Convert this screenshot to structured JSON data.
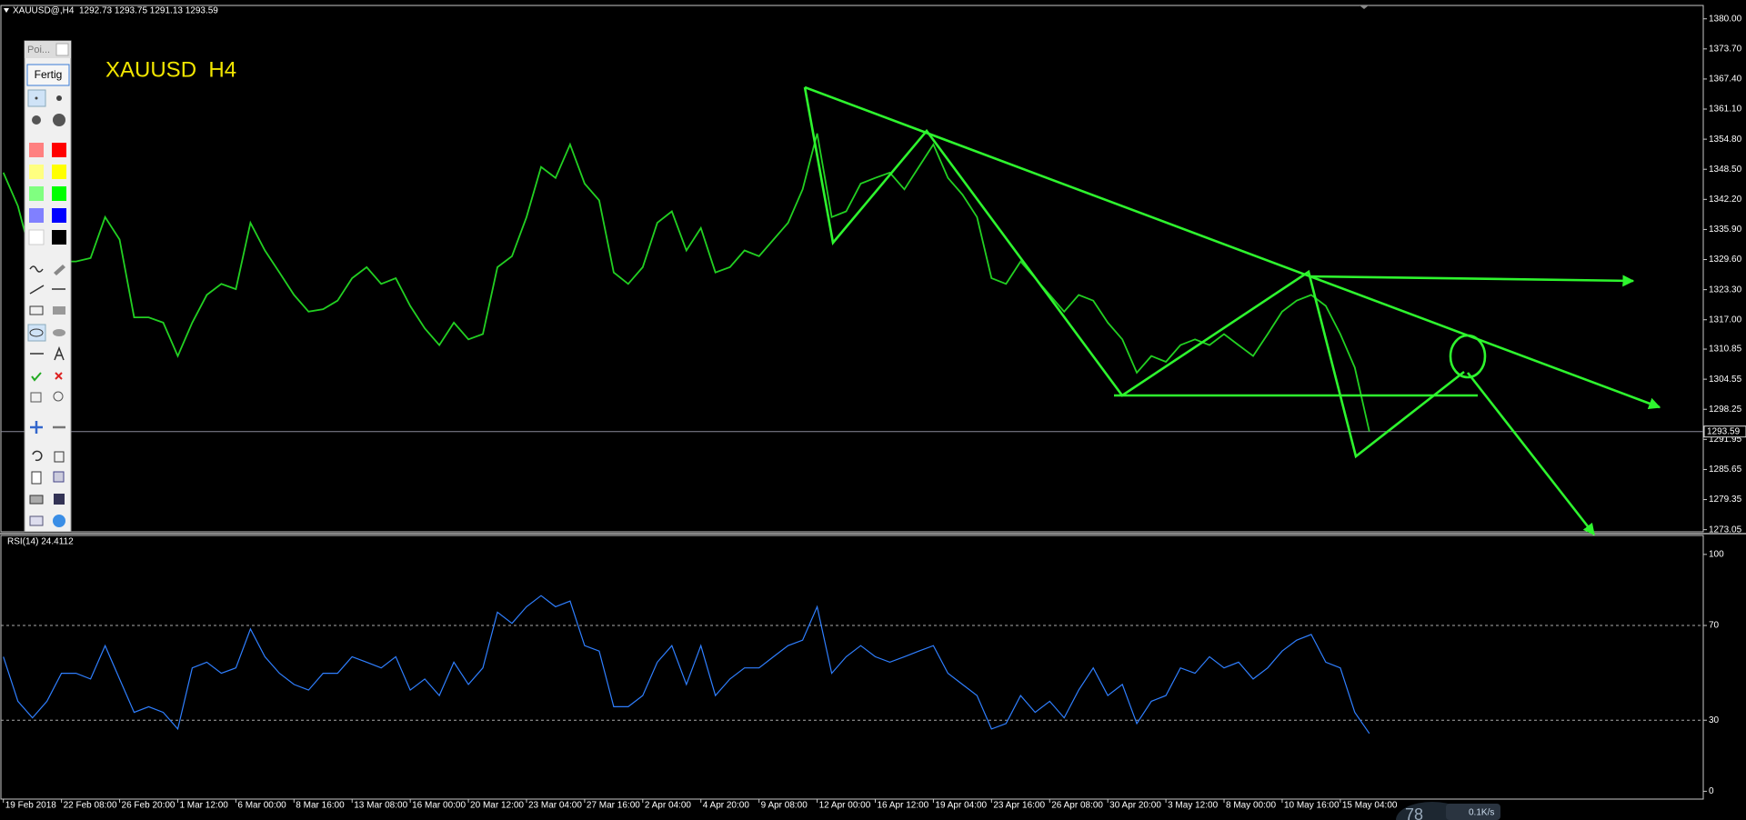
{
  "header": {
    "info": "XAUUSD@,H4  1292.73 1293.75 1291.13 1293.59"
  },
  "toolbar": {
    "title": "Poi...",
    "button": "Fertig"
  },
  "status": {
    "gauge": "78",
    "speed": "0.1K/s"
  },
  "chart_data": [
    {
      "type": "line",
      "title": "XAUUSD  H4",
      "color": "#22d022",
      "values": [
        1347.8,
        1340.8,
        1329.2,
        1328.0,
        1329.2,
        1329.2,
        1329.9,
        1338.5,
        1333.8,
        1317.5,
        1317.5,
        1316.4,
        1309.4,
        1316.4,
        1322.2,
        1324.5,
        1323.4,
        1337.3,
        1331.5,
        1326.9,
        1322.2,
        1318.7,
        1319.2,
        1321.0,
        1325.7,
        1328.0,
        1324.5,
        1325.7,
        1319.9,
        1315.2,
        1311.7,
        1316.4,
        1312.9,
        1314.0,
        1328.0,
        1330.3,
        1338.5,
        1349.0,
        1346.7,
        1353.7,
        1345.5,
        1342.0,
        1326.9,
        1324.5,
        1328.0,
        1337.3,
        1339.7,
        1331.5,
        1336.2,
        1326.9,
        1328.0,
        1331.5,
        1330.3,
        1333.8,
        1337.3,
        1344.3,
        1356.0,
        1338.5,
        1339.7,
        1345.5,
        1346.7,
        1347.8,
        1344.3,
        1349.0,
        1353.7,
        1346.7,
        1343.2,
        1338.5,
        1325.7,
        1324.5,
        1329.2,
        1325.7,
        1322.2,
        1318.7,
        1322.2,
        1321.0,
        1316.4,
        1312.9,
        1305.9,
        1309.4,
        1308.2,
        1311.7,
        1312.9,
        1311.7,
        1314.0,
        1311.7,
        1309.4,
        1314.0,
        1318.7,
        1321.0,
        1322.2,
        1319.9,
        1314.0,
        1307.0,
        1293.59
      ],
      "ylim": [
        1272.6,
        1382.8
      ],
      "yticks": [
        {
          "value": 1380,
          "label": "1380.00"
        },
        {
          "value": 1373.7,
          "label": "1373.70"
        },
        {
          "value": 1367.4,
          "label": "1367.40"
        },
        {
          "value": 1361.1,
          "label": "1361.10"
        },
        {
          "value": 1354.8,
          "label": "1354.80"
        },
        {
          "value": 1348.5,
          "label": "1348.50"
        },
        {
          "value": 1342.2,
          "label": "1342.20"
        },
        {
          "value": 1335.9,
          "label": "1335.90"
        },
        {
          "value": 1329.6,
          "label": "1329.60"
        },
        {
          "value": 1323.3,
          "label": "1323.30"
        },
        {
          "value": 1317,
          "label": "1317.00"
        },
        1310.85,
        1304.55,
        {
          "value": 1298.25,
          "label": "1298.25"
        },
        1291.95,
        1285.65,
        1279.35,
        1273.05
      ],
      "price_line": 1293.59
    },
    {
      "type": "line",
      "title": "RSI(14) 24.4112",
      "color": "#2f7fff",
      "categories": [
        "19 Feb 2018",
        null,
        null,
        null,
        "22 Feb 08:00",
        null,
        null,
        null,
        "26 Feb 20:00",
        null,
        null,
        null,
        "1 Mar 12:00",
        null,
        null,
        null,
        "6 Mar 00:00",
        null,
        null,
        null,
        "8 Mar 16:00",
        null,
        null,
        null,
        "13 Mar 08:00",
        null,
        null,
        null,
        "16 Mar 00:00",
        null,
        null,
        null,
        "20 Mar 12:00",
        null,
        null,
        null,
        "23 Mar 04:00",
        null,
        null,
        null,
        "27 Mar 16:00",
        null,
        null,
        null,
        "2 Apr 04:00",
        null,
        null,
        null,
        "4 Apr 20:00",
        null,
        null,
        null,
        "9 Apr 08:00",
        null,
        null,
        null,
        "12 Apr 00:00",
        null,
        null,
        null,
        "16 Apr 12:00",
        null,
        null,
        null,
        "19 Apr 04:00",
        null,
        null,
        null,
        "23 Apr 16:00",
        null,
        null,
        null,
        "26 Apr 08:00",
        null,
        null,
        null,
        "30 Apr 20:00",
        null,
        null,
        null,
        "3 May 12:00",
        null,
        null,
        null,
        "8 May 00:00",
        null,
        null,
        null,
        "10 May 16:00",
        null,
        null,
        null,
        "15 May 04:00",
        null,
        null
      ],
      "values": [
        56.8,
        38.0,
        31.0,
        38.0,
        49.8,
        49.8,
        47.4,
        61.5,
        47.4,
        33.3,
        35.7,
        33.3,
        26.3,
        52.1,
        54.5,
        49.8,
        52.1,
        68.5,
        56.8,
        49.8,
        45.1,
        42.7,
        49.8,
        49.8,
        56.8,
        54.5,
        52.1,
        56.8,
        42.7,
        47.4,
        40.4,
        54.5,
        45.1,
        52.1,
        75.6,
        70.9,
        77.9,
        82.6,
        77.9,
        80.3,
        61.5,
        59.2,
        35.7,
        35.7,
        40.4,
        54.5,
        61.5,
        45.1,
        61.5,
        40.4,
        47.4,
        52.1,
        52.1,
        56.8,
        61.5,
        63.8,
        77.9,
        49.8,
        56.8,
        61.5,
        56.8,
        54.5,
        56.8,
        59.2,
        61.5,
        49.8,
        45.1,
        40.4,
        26.3,
        28.6,
        40.4,
        33.3,
        38.0,
        31.0,
        42.7,
        52.1,
        40.4,
        45.1,
        28.6,
        38.0,
        40.4,
        52.1,
        49.8,
        56.8,
        52.1,
        54.5,
        47.4,
        52.1,
        59.2,
        63.8,
        66.2,
        54.5,
        52.1,
        33.3,
        24.4112
      ],
      "ylim": [
        -3.3,
        108
      ],
      "yticks": [
        0,
        30,
        70,
        100
      ],
      "levels": [
        30,
        70
      ]
    }
  ]
}
